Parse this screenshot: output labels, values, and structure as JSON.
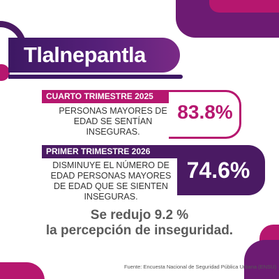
{
  "title": "Tlalnepantla",
  "stats": [
    {
      "period": "CUARTO TRIMESTRE 2025",
      "description": "PERSONAS MAYORES DE EDAD SE SENTÍAN INSEGURAS.",
      "percent": "83.8%",
      "color": "#b6176f"
    },
    {
      "period": "PRIMER TRIMESTRE 2026",
      "description": "DISMINUYE EL NÚMERO DE EDAD PERSONAS MAYORES DE EDAD QUE SE SIENTEN INSEGURAS.",
      "percent": "74.6%",
      "color": "#4a1a63"
    }
  ],
  "conclusion": {
    "line1": "Se redujo 9.2 %",
    "line2": "la percepción de inseguridad."
  },
  "source": "Fuente: Encuesta Nacional de Seguridad Pública Urbana (ENSU)",
  "colors": {
    "magenta": "#b6176f",
    "purple": "#4a1a63",
    "gray_text": "#5a5a5a"
  }
}
